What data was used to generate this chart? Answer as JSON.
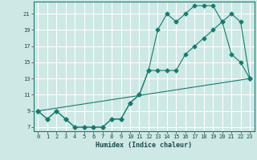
{
  "title": "",
  "xlabel": "Humidex (Indice chaleur)",
  "xlim": [
    -0.5,
    23.5
  ],
  "ylim": [
    6.5,
    22.5
  ],
  "yticks": [
    7,
    9,
    11,
    13,
    15,
    17,
    19,
    21
  ],
  "xticks": [
    0,
    1,
    2,
    3,
    4,
    5,
    6,
    7,
    8,
    9,
    10,
    11,
    12,
    13,
    14,
    15,
    16,
    17,
    18,
    19,
    20,
    21,
    22,
    23
  ],
  "bg_color": "#cde8e5",
  "grid_color": "#ffffff",
  "line_color": "#1a7a6e",
  "line1_x": [
    0,
    1,
    2,
    3,
    4,
    5,
    6,
    7,
    8,
    9,
    10,
    11,
    12,
    13,
    14,
    15,
    16,
    17,
    18,
    19,
    20,
    21,
    22,
    23
  ],
  "line1_y": [
    9,
    8,
    9,
    8,
    7,
    7,
    7,
    7,
    8,
    8,
    10,
    11,
    14,
    14,
    14,
    14,
    16,
    17,
    18,
    19,
    20,
    21,
    20,
    13
  ],
  "line2_x": [
    0,
    1,
    2,
    3,
    4,
    5,
    6,
    7,
    8,
    9,
    10,
    11,
    12,
    13,
    14,
    15,
    16,
    17,
    18,
    19,
    20,
    21,
    22,
    23
  ],
  "line2_y": [
    9,
    8,
    9,
    8,
    7,
    7,
    7,
    7,
    8,
    8,
    10,
    11,
    14,
    19,
    21,
    20,
    21,
    22,
    22,
    22,
    20,
    16,
    15,
    13
  ],
  "line3_x": [
    0,
    23
  ],
  "line3_y": [
    9,
    13
  ]
}
